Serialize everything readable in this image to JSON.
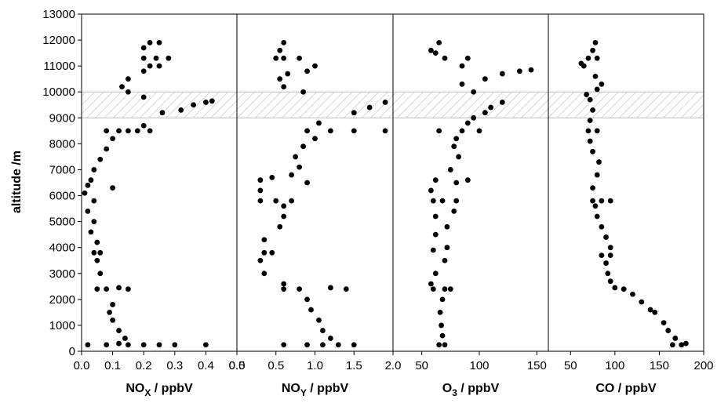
{
  "chart_data": {
    "type": "scatter",
    "ylabel": "altitude /m",
    "ylim": [
      0,
      13000
    ],
    "yticks": [
      "0",
      "1000",
      "2000",
      "3000",
      "4000",
      "5000",
      "6000",
      "7000",
      "8000",
      "9000",
      "10000",
      "11000",
      "12000",
      "13000"
    ],
    "hatched_band": [
      9000,
      10000
    ],
    "panels": [
      {
        "xlabel_main": "NO",
        "xlabel_sub": "X",
        "xlabel_unit": " / ppbV",
        "xlim": [
          0,
          0.5
        ],
        "xticks": [
          "0.0",
          "0.1",
          "0.2",
          "0.3",
          "0.4",
          "0.5"
        ],
        "points": [
          [
            0.02,
            250
          ],
          [
            0.08,
            250
          ],
          [
            0.12,
            300
          ],
          [
            0.15,
            250
          ],
          [
            0.2,
            250
          ],
          [
            0.25,
            250
          ],
          [
            0.3,
            250
          ],
          [
            0.4,
            250
          ],
          [
            0.14,
            500
          ],
          [
            0.12,
            800
          ],
          [
            0.1,
            1200
          ],
          [
            0.09,
            1500
          ],
          [
            0.1,
            1800
          ],
          [
            0.08,
            2400
          ],
          [
            0.05,
            2400
          ],
          [
            0.12,
            2450
          ],
          [
            0.15,
            2400
          ],
          [
            0.06,
            3000
          ],
          [
            0.05,
            3500
          ],
          [
            0.04,
            3800
          ],
          [
            0.06,
            3800
          ],
          [
            0.05,
            4200
          ],
          [
            0.03,
            4600
          ],
          [
            0.04,
            5000
          ],
          [
            0.02,
            5400
          ],
          [
            0.04,
            5800
          ],
          [
            0.01,
            6100
          ],
          [
            0.02,
            6400
          ],
          [
            0.03,
            6600
          ],
          [
            0.1,
            6300
          ],
          [
            0.04,
            7000
          ],
          [
            0.06,
            7400
          ],
          [
            0.08,
            7800
          ],
          [
            0.1,
            8200
          ],
          [
            0.15,
            8500
          ],
          [
            0.12,
            8500
          ],
          [
            0.08,
            8500
          ],
          [
            0.18,
            8500
          ],
          [
            0.22,
            8500
          ],
          [
            0.2,
            8700
          ],
          [
            0.26,
            9200
          ],
          [
            0.32,
            9300
          ],
          [
            0.36,
            9500
          ],
          [
            0.4,
            9600
          ],
          [
            0.42,
            9650
          ],
          [
            0.2,
            9800
          ],
          [
            0.15,
            10000
          ],
          [
            0.13,
            10200
          ],
          [
            0.15,
            10500
          ],
          [
            0.2,
            10800
          ],
          [
            0.22,
            11000
          ],
          [
            0.25,
            11000
          ],
          [
            0.2,
            11300
          ],
          [
            0.24,
            11300
          ],
          [
            0.28,
            11300
          ],
          [
            0.2,
            11700
          ],
          [
            0.22,
            11900
          ],
          [
            0.25,
            11900
          ]
        ]
      },
      {
        "xlabel_main": "NO",
        "xlabel_sub": "Y",
        "xlabel_unit": " / ppbV",
        "xlim": [
          0,
          2.0
        ],
        "xticks": [
          "0.0",
          "0.5",
          "1.0",
          "1.5",
          "2.0"
        ],
        "points": [
          [
            0.6,
            250
          ],
          [
            0.9,
            250
          ],
          [
            1.1,
            250
          ],
          [
            1.3,
            250
          ],
          [
            1.5,
            250
          ],
          [
            1.2,
            500
          ],
          [
            1.1,
            800
          ],
          [
            1.05,
            1200
          ],
          [
            0.95,
            1600
          ],
          [
            0.9,
            2000
          ],
          [
            0.8,
            2400
          ],
          [
            0.6,
            2400
          ],
          [
            1.2,
            2450
          ],
          [
            1.4,
            2400
          ],
          [
            0.6,
            2600
          ],
          [
            0.35,
            3000
          ],
          [
            0.3,
            3500
          ],
          [
            0.35,
            3800
          ],
          [
            0.45,
            3800
          ],
          [
            0.35,
            4300
          ],
          [
            0.55,
            4800
          ],
          [
            0.6,
            5200
          ],
          [
            0.6,
            5600
          ],
          [
            0.3,
            5800
          ],
          [
            0.5,
            5800
          ],
          [
            0.7,
            5800
          ],
          [
            0.3,
            6200
          ],
          [
            0.3,
            6600
          ],
          [
            0.45,
            6700
          ],
          [
            0.7,
            6800
          ],
          [
            0.9,
            6500
          ],
          [
            0.8,
            7100
          ],
          [
            0.75,
            7500
          ],
          [
            0.85,
            7900
          ],
          [
            1.0,
            8200
          ],
          [
            0.9,
            8500
          ],
          [
            1.2,
            8500
          ],
          [
            1.5,
            8500
          ],
          [
            1.9,
            8500
          ],
          [
            1.05,
            8800
          ],
          [
            1.5,
            9200
          ],
          [
            1.7,
            9400
          ],
          [
            1.9,
            9600
          ],
          [
            0.85,
            10000
          ],
          [
            0.6,
            10200
          ],
          [
            0.55,
            10500
          ],
          [
            0.65,
            10700
          ],
          [
            0.9,
            10800
          ],
          [
            1.0,
            11000
          ],
          [
            0.6,
            11300
          ],
          [
            0.8,
            11300
          ],
          [
            0.5,
            11300
          ],
          [
            0.55,
            11600
          ],
          [
            0.6,
            11900
          ]
        ]
      },
      {
        "xlabel_main": "O",
        "xlabel_sub": "3",
        "xlabel_unit": " / ppbV",
        "xlim": [
          25,
          160
        ],
        "xticks": [
          "50",
          "100",
          "150"
        ],
        "points": [
          [
            65,
            250
          ],
          [
            70,
            250
          ],
          [
            68,
            600
          ],
          [
            67,
            1000
          ],
          [
            66,
            1500
          ],
          [
            68,
            2000
          ],
          [
            70,
            2400
          ],
          [
            60,
            2400
          ],
          [
            75,
            2400
          ],
          [
            58,
            2600
          ],
          [
            62,
            3000
          ],
          [
            70,
            3500
          ],
          [
            60,
            3900
          ],
          [
            72,
            4000
          ],
          [
            62,
            4500
          ],
          [
            72,
            4800
          ],
          [
            62,
            5200
          ],
          [
            78,
            5400
          ],
          [
            68,
            5800
          ],
          [
            60,
            5800
          ],
          [
            80,
            5800
          ],
          [
            58,
            6200
          ],
          [
            62,
            6600
          ],
          [
            80,
            6500
          ],
          [
            90,
            6600
          ],
          [
            75,
            7000
          ],
          [
            82,
            7500
          ],
          [
            78,
            7900
          ],
          [
            80,
            8200
          ],
          [
            65,
            8500
          ],
          [
            85,
            8500
          ],
          [
            100,
            8500
          ],
          [
            90,
            8800
          ],
          [
            95,
            9000
          ],
          [
            105,
            9200
          ],
          [
            110,
            9400
          ],
          [
            120,
            9600
          ],
          [
            95,
            10000
          ],
          [
            85,
            10300
          ],
          [
            105,
            10500
          ],
          [
            120,
            10700
          ],
          [
            135,
            10800
          ],
          [
            145,
            10850
          ],
          [
            85,
            11000
          ],
          [
            70,
            11300
          ],
          [
            90,
            11300
          ],
          [
            62,
            11500
          ],
          [
            58,
            11600
          ],
          [
            65,
            11900
          ]
        ]
      },
      {
        "xlabel_main": "CO",
        "xlabel_sub": "",
        "xlabel_unit": " / ppbV",
        "xlim": [
          25,
          200
        ],
        "xticks": [
          "50",
          "100",
          "150",
          "200"
        ],
        "points": [
          [
            165,
            250
          ],
          [
            175,
            250
          ],
          [
            180,
            300
          ],
          [
            168,
            500
          ],
          [
            160,
            800
          ],
          [
            155,
            1100
          ],
          [
            145,
            1500
          ],
          [
            140,
            1600
          ],
          [
            130,
            1900
          ],
          [
            120,
            2200
          ],
          [
            110,
            2400
          ],
          [
            100,
            2450
          ],
          [
            95,
            2700
          ],
          [
            92,
            3000
          ],
          [
            90,
            3400
          ],
          [
            85,
            3700
          ],
          [
            95,
            3700
          ],
          [
            95,
            4000
          ],
          [
            90,
            4400
          ],
          [
            85,
            4800
          ],
          [
            80,
            5200
          ],
          [
            78,
            5600
          ],
          [
            85,
            5800
          ],
          [
            75,
            5800
          ],
          [
            95,
            5800
          ],
          [
            75,
            6300
          ],
          [
            80,
            6800
          ],
          [
            82,
            7300
          ],
          [
            75,
            7700
          ],
          [
            72,
            8100
          ],
          [
            80,
            8500
          ],
          [
            70,
            8500
          ],
          [
            72,
            8900
          ],
          [
            75,
            9300
          ],
          [
            72,
            9700
          ],
          [
            68,
            9900
          ],
          [
            80,
            10100
          ],
          [
            85,
            10300
          ],
          [
            78,
            10600
          ],
          [
            65,
            11000
          ],
          [
            62,
            11100
          ],
          [
            70,
            11300
          ],
          [
            80,
            11300
          ],
          [
            75,
            11600
          ],
          [
            78,
            11900
          ]
        ]
      }
    ]
  }
}
